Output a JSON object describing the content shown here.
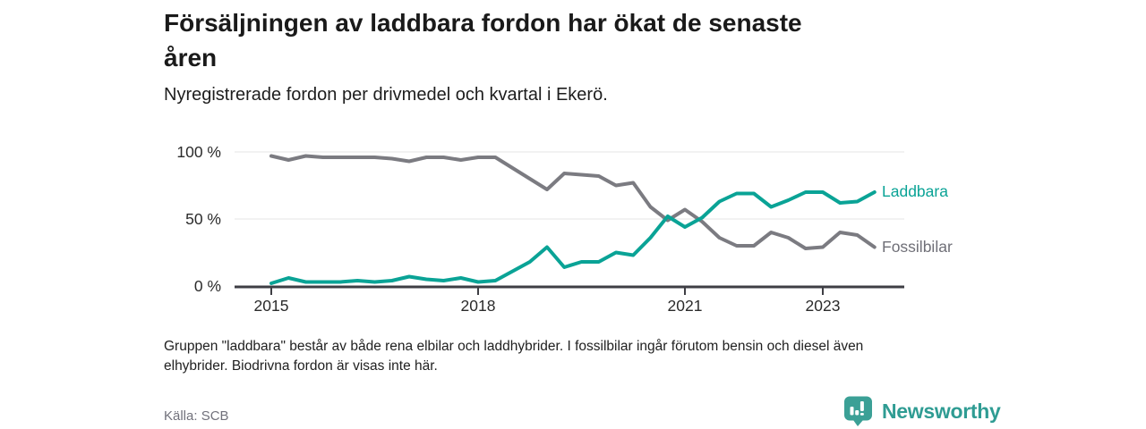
{
  "header": {
    "title_lines": [
      "Försäljningen av laddbara fordon har ökat de senaste",
      "åren"
    ],
    "subtitle": "Nyregistrerade fordon per drivmedel och kvartal i Ekerö."
  },
  "footer": {
    "note_lines": [
      "Gruppen \"laddbara\" består av både rena elbilar och laddhybrider. I fossilbilar ingår förutom bensin och diesel även",
      "elhybrider. Biodrivna fordon är visas inte här."
    ],
    "source": "Källa: SCB",
    "brand": "Newsworthy",
    "brand_icon": "newsworthy-bar-chart-bubble-icon"
  },
  "colors": {
    "laddbara": "#0aa396",
    "fossilbilar": "#7b7b81",
    "fossilbilar_label": "#6f6f77",
    "gridline": "#e4e4e6",
    "axis": "#3e3e44",
    "brand_teal": "#2f9c93",
    "brand_bubble": "#3ba096"
  },
  "chart_data": {
    "type": "line",
    "title": "Försäljningen av laddbara fordon har ökat de senaste åren",
    "subtitle": "Nyregistrerade fordon per drivmedel och kvartal i Ekerö.",
    "xlabel": "",
    "ylabel": "",
    "ylim": [
      0,
      100
    ],
    "grid": "horizontal, at 50% and 100%",
    "legend_position": "right-of-line-end",
    "y_ticks": [
      "100 %",
      "50 %",
      "0 %"
    ],
    "x_label_ticks": [
      "2015",
      "2018",
      "2021",
      "2023"
    ],
    "x": [
      "2015 K1",
      "2015 K2",
      "2015 K3",
      "2015 K4",
      "2016 K1",
      "2016 K2",
      "2016 K3",
      "2016 K4",
      "2017 K1",
      "2017 K2",
      "2017 K3",
      "2017 K4",
      "2018 K1",
      "2018 K2",
      "2018 K3",
      "2018 K4",
      "2019 K1",
      "2019 K2",
      "2019 K3",
      "2019 K4",
      "2020 K1",
      "2020 K2",
      "2020 K3",
      "2020 K4",
      "2021 K1",
      "2021 K2",
      "2021 K3",
      "2021 K4",
      "2022 K1",
      "2022 K2",
      "2022 K3",
      "2022 K4",
      "2023 K1",
      "2023 K2",
      "2023 K3",
      "2023 K4"
    ],
    "series": [
      {
        "name": "Laddbara",
        "color": "#0aa396",
        "label_color": "#0aa396",
        "values": [
          2,
          6,
          3,
          3,
          3,
          4,
          3,
          4,
          7,
          5,
          4,
          6,
          3,
          4,
          11,
          18,
          29,
          14,
          18,
          18,
          25,
          23,
          36,
          52,
          44,
          51,
          63,
          69,
          69,
          59,
          64,
          70,
          70,
          62,
          63,
          70
        ]
      },
      {
        "name": "Fossilbilar",
        "color": "#7b7b81",
        "label_color": "#6f6f77",
        "values": [
          97,
          94,
          97,
          96,
          96,
          96,
          96,
          95,
          93,
          96,
          96,
          94,
          96,
          96,
          88,
          80,
          72,
          84,
          83,
          82,
          75,
          77,
          59,
          49,
          57,
          48,
          36,
          30,
          30,
          40,
          36,
          28,
          29,
          40,
          38,
          29
        ]
      }
    ]
  }
}
